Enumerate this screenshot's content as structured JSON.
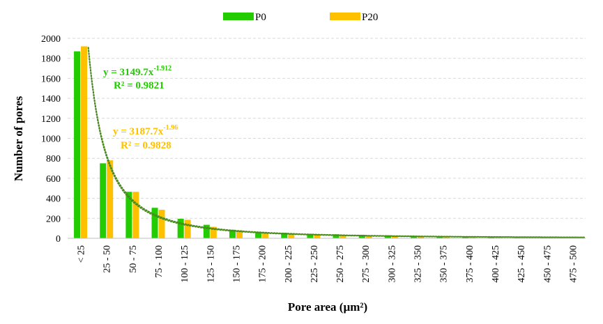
{
  "chart_data": {
    "type": "bar",
    "xlabel": "Pore area (µm²)",
    "ylabel": "Number of pores",
    "ylim": [
      0,
      2000
    ],
    "yticks": [
      0,
      200,
      400,
      600,
      800,
      1000,
      1200,
      1400,
      1600,
      1800,
      2000
    ],
    "grid": true,
    "legend_position": "top-center",
    "categories": [
      "< 25",
      "25 - 50",
      "50 - 75",
      "75 - 100",
      "100 - 125",
      "125 - 150",
      "150 - 175",
      "175 - 200",
      "200 - 225",
      "225 - 250",
      "250 - 275",
      "275 - 300",
      "300 - 325",
      "325 - 350",
      "350 - 375",
      "375 - 400",
      "400 - 425",
      "425 - 450",
      "450 - 475",
      "475 - 500"
    ],
    "series": [
      {
        "name": "P0",
        "color": "#22cc00",
        "values": [
          1870,
          750,
          465,
          305,
          195,
          135,
          85,
          65,
          55,
          45,
          40,
          35,
          30,
          25,
          20,
          15,
          12,
          10,
          10,
          8
        ],
        "trendline": {
          "a": 3149.7,
          "b": -1.912,
          "equation": "y = 3149.7x",
          "exponent": "-1.912",
          "r2": "R² = 0.9821"
        }
      },
      {
        "name": "P20",
        "color": "#ffc000",
        "values": [
          1920,
          780,
          465,
          285,
          185,
          115,
          80,
          60,
          50,
          40,
          35,
          30,
          25,
          20,
          15,
          12,
          10,
          8,
          8,
          6
        ],
        "trendline": {
          "a": 3187.7,
          "b": -1.96,
          "equation": "y = 3187.7x",
          "exponent": "-1.96",
          "r2": "R² = 0.9828"
        }
      }
    ],
    "trendline_color": "#4a8a1e"
  }
}
